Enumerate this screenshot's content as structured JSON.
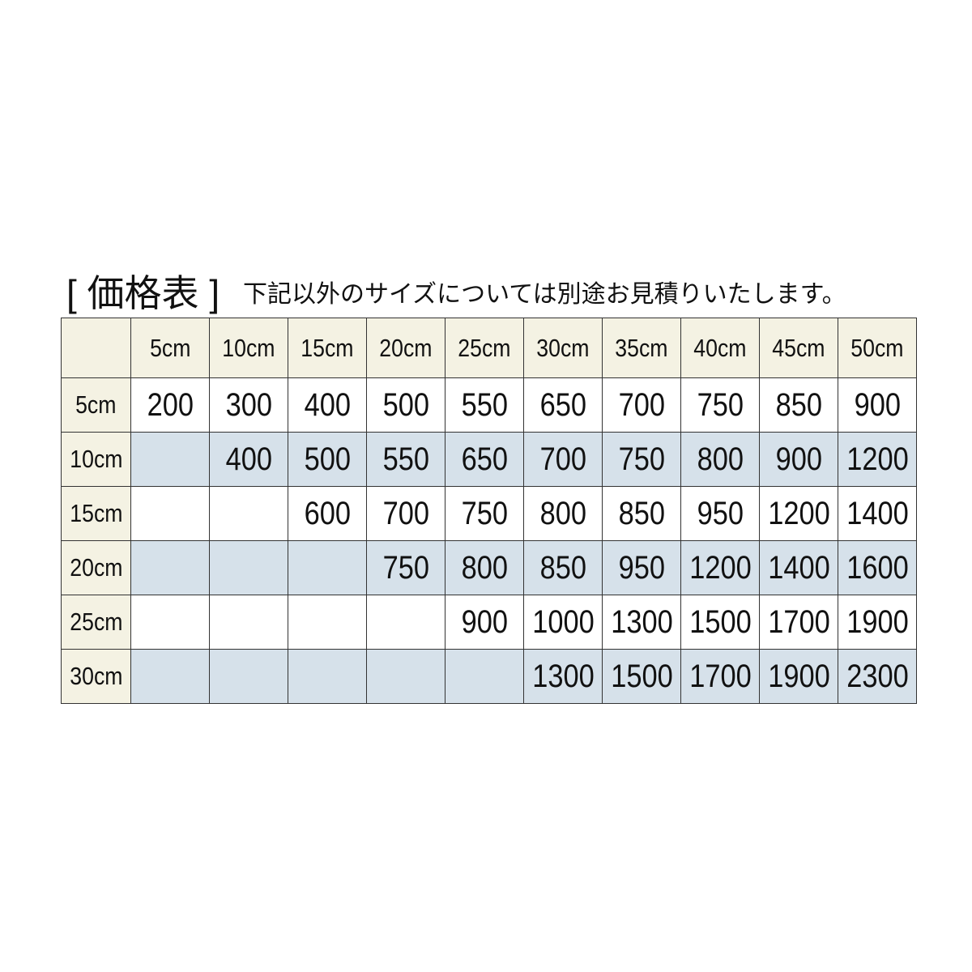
{
  "header": {
    "title": "[ 価格表 ]",
    "note": "下記以外のサイズについては別途お見積りいたします。"
  },
  "table": {
    "columns": [
      "5cm",
      "10cm",
      "15cm",
      "20cm",
      "25cm",
      "30cm",
      "35cm",
      "40cm",
      "45cm",
      "50cm"
    ],
    "row_headers": [
      "5cm",
      "10cm",
      "15cm",
      "20cm",
      "25cm",
      "30cm"
    ],
    "rows": [
      [
        200,
        300,
        400,
        500,
        550,
        650,
        700,
        750,
        850,
        900
      ],
      [
        null,
        400,
        500,
        550,
        650,
        700,
        750,
        800,
        900,
        1200
      ],
      [
        null,
        null,
        600,
        700,
        750,
        800,
        850,
        950,
        1200,
        1400
      ],
      [
        null,
        null,
        null,
        750,
        800,
        850,
        950,
        1200,
        1400,
        1600
      ],
      [
        null,
        null,
        null,
        null,
        900,
        1000,
        1300,
        1500,
        1700,
        1900
      ],
      [
        null,
        null,
        null,
        null,
        null,
        1300,
        1500,
        1700,
        1900,
        2300
      ]
    ]
  }
}
